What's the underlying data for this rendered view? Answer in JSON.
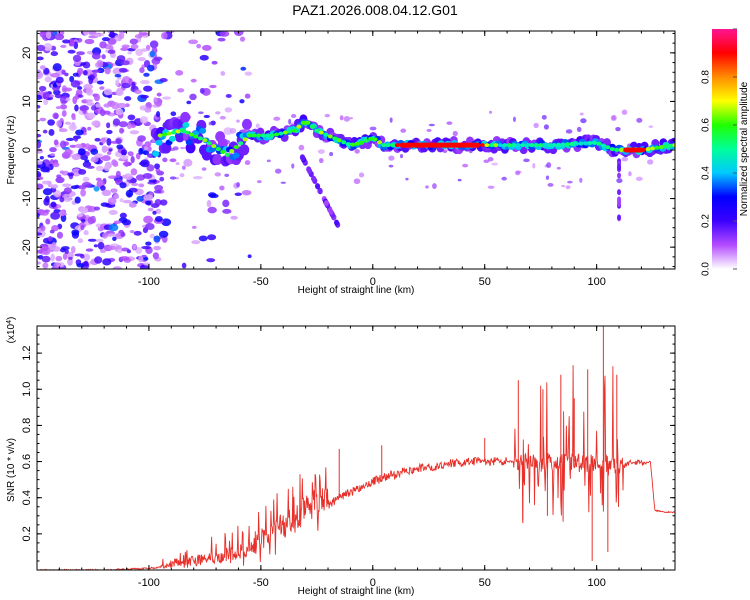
{
  "title": "PAZ1.2026.008.04.12.G01",
  "chart_data": [
    {
      "type": "heatmap",
      "xlabel": "Height of straight line (km)",
      "ylabel": "Frequency (Hz)",
      "xlim": [
        -150,
        135
      ],
      "ylim": [
        -24.5,
        24.5
      ],
      "xticks": [
        -100,
        -50,
        0,
        50,
        100
      ],
      "yticks": [
        -20,
        -10,
        0,
        10,
        20
      ],
      "colorbar": {
        "label": "Normalized spectral amplitude",
        "range": [
          0.0,
          1.0
        ],
        "ticks": [
          "0.0",
          "0.2",
          "0.4",
          "0.6",
          "0.8"
        ],
        "colors": [
          "#ffffff",
          "#b44cff",
          "#3b00ff",
          "#0000ff",
          "#00c8ff",
          "#00ff9a",
          "#20ff00",
          "#ffff00",
          "#ff8c00",
          "#ff0000",
          "#ff1493"
        ]
      },
      "ridge": [
        {
          "x": -95,
          "y": 3
        },
        {
          "x": -85,
          "y": 4
        },
        {
          "x": -75,
          "y": 2
        },
        {
          "x": -65,
          "y": -1
        },
        {
          "x": -55,
          "y": 3
        },
        {
          "x": -45,
          "y": 3
        },
        {
          "x": -35,
          "y": 4
        },
        {
          "x": -30,
          "y": 6
        },
        {
          "x": -25,
          "y": 4
        },
        {
          "x": -20,
          "y": 3
        },
        {
          "x": -15,
          "y": 2
        },
        {
          "x": -10,
          "y": 1
        },
        {
          "x": -5,
          "y": 1.5
        },
        {
          "x": 0,
          "y": 2.5
        },
        {
          "x": 5,
          "y": 1
        },
        {
          "x": 15,
          "y": 1
        },
        {
          "x": 40,
          "y": 1
        },
        {
          "x": 60,
          "y": 1
        },
        {
          "x": 80,
          "y": 1
        },
        {
          "x": 100,
          "y": 1.5
        },
        {
          "x": 108,
          "y": 0
        },
        {
          "x": 120,
          "y": 0
        },
        {
          "x": 135,
          "y": 1
        }
      ]
    },
    {
      "type": "line",
      "xlabel": "Height of straight line (km)",
      "ylabel": "SNR (10 * v/v)",
      "yscale_label": "(x10",
      "yscale_exponent": "4",
      "xlim": [
        -150,
        135
      ],
      "ylim": [
        0,
        1.35
      ],
      "xticks": [
        -100,
        -50,
        0,
        50,
        100
      ],
      "yticks": [
        0.2,
        0.4,
        0.6,
        0.8,
        1.0,
        1.2
      ],
      "color": "#e8302a",
      "series": [
        {
          "x": [
            -150,
            -120,
            -100,
            -90,
            -80,
            -70,
            -60,
            -55,
            -50,
            -45,
            -40,
            -35,
            -30,
            -25,
            -20,
            -15,
            -10,
            -5,
            0,
            5,
            10,
            15,
            20,
            25,
            30,
            35,
            40,
            45,
            50,
            55,
            60,
            63,
            65,
            70,
            75,
            80,
            85,
            90,
            95,
            100,
            105,
            108,
            110,
            112,
            115,
            120,
            124,
            126,
            130,
            135
          ],
          "y": [
            0.0,
            0.0,
            0.01,
            0.02,
            0.04,
            0.06,
            0.08,
            0.1,
            0.13,
            0.17,
            0.21,
            0.25,
            0.3,
            0.33,
            0.36,
            0.4,
            0.43,
            0.46,
            0.49,
            0.51,
            0.53,
            0.55,
            0.56,
            0.57,
            0.58,
            0.59,
            0.59,
            0.6,
            0.6,
            0.6,
            0.6,
            0.6,
            0.59,
            0.6,
            0.58,
            0.6,
            0.59,
            0.6,
            0.58,
            0.6,
            0.59,
            0.6,
            0.58,
            0.57,
            0.6,
            0.59,
            0.6,
            0.33,
            0.32,
            0.32
          ]
        }
      ]
    }
  ]
}
